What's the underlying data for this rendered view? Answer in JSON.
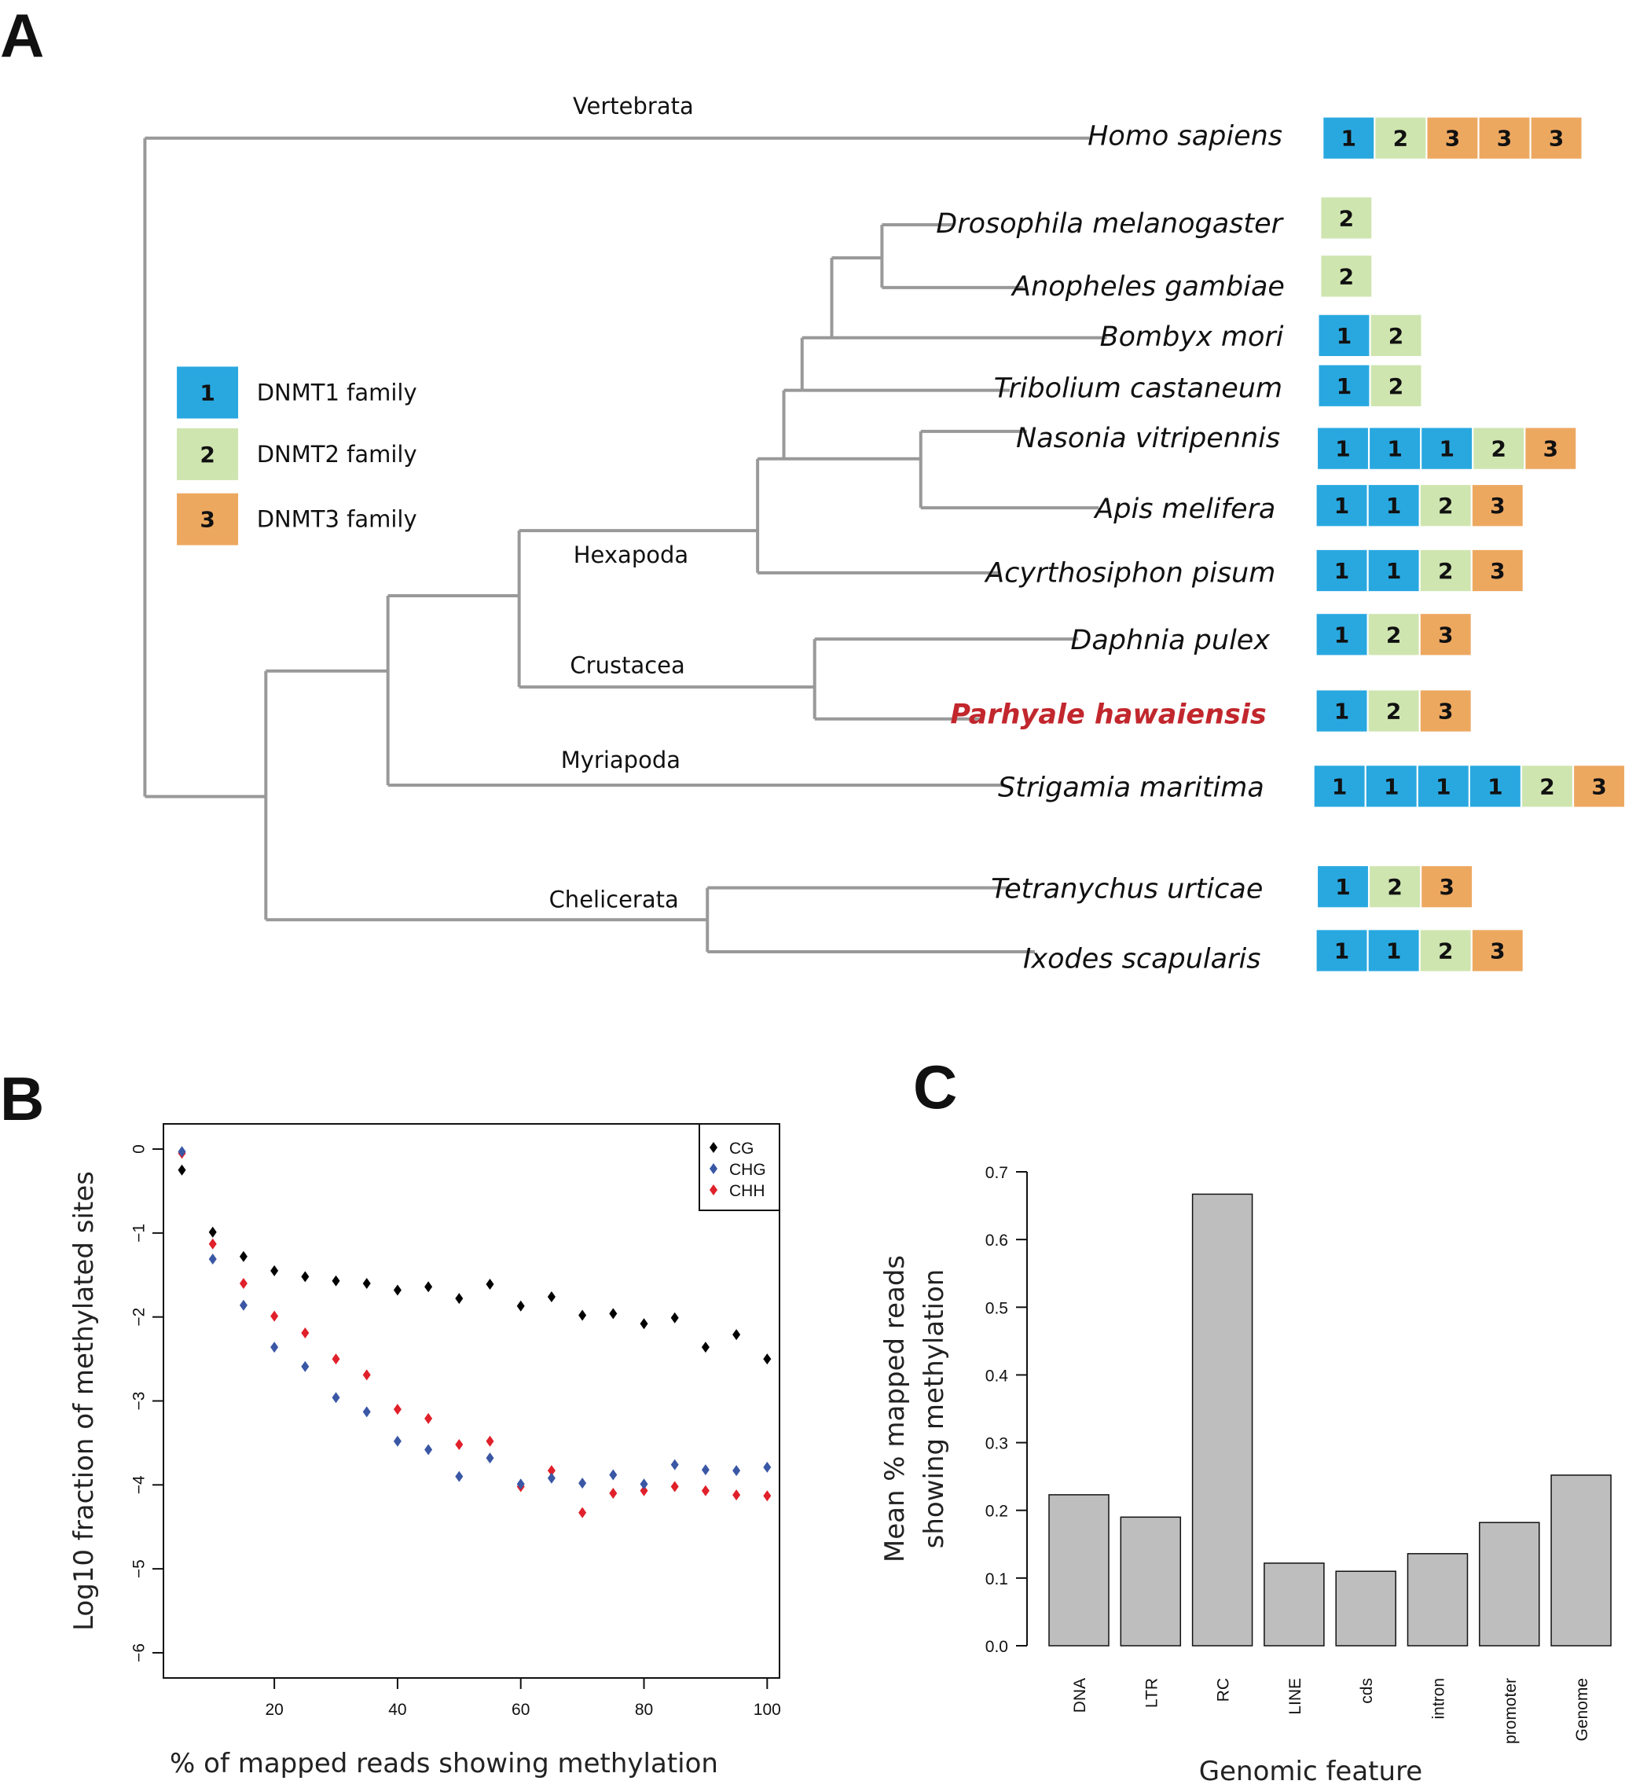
{
  "panels": {
    "a": "A",
    "b": "B",
    "c": "C"
  },
  "colors": {
    "dnmt1": "#29a8e0",
    "dnmt2": "#cfe5b0",
    "dnmt3": "#eda860",
    "branch": "#999999",
    "highlight": "#c1272d",
    "cg": "#000000",
    "chg": "#3a57a5",
    "chh": "#e0202a",
    "bar": "#bebebe"
  },
  "legend": [
    {
      "num": "1",
      "label": "DNMT1 family",
      "family": "dnmt1"
    },
    {
      "num": "2",
      "label": "DNMT2 family",
      "family": "dnmt2"
    },
    {
      "num": "3",
      "label": "DNMT3 family",
      "family": "dnmt3"
    }
  ],
  "clades": [
    "Vertebrata",
    "Hexapoda",
    "Crustacea",
    "Myriapoda",
    "Chelicerata"
  ],
  "species": [
    {
      "name": "Homo sapiens",
      "dnmts": [
        "1",
        "2",
        "3",
        "3",
        "3"
      ],
      "highlight": false
    },
    {
      "name": "Drosophila melanogaster",
      "dnmts": [
        "2"
      ],
      "highlight": false
    },
    {
      "name": "Anopheles gambiae",
      "dnmts": [
        "2"
      ],
      "highlight": false
    },
    {
      "name": "Bombyx mori",
      "dnmts": [
        "1",
        "2"
      ],
      "highlight": false
    },
    {
      "name": "Tribolium castaneum",
      "dnmts": [
        "1",
        "2"
      ],
      "highlight": false
    },
    {
      "name": "Nasonia vitripennis",
      "dnmts": [
        "1",
        "1",
        "1",
        "2",
        "3"
      ],
      "highlight": false
    },
    {
      "name": "Apis melifera",
      "dnmts": [
        "1",
        "1",
        "2",
        "3"
      ],
      "highlight": false
    },
    {
      "name": "Acyrthosiphon pisum",
      "dnmts": [
        "1",
        "1",
        "2",
        "3"
      ],
      "highlight": false
    },
    {
      "name": "Daphnia pulex",
      "dnmts": [
        "1",
        "2",
        "3"
      ],
      "highlight": false
    },
    {
      "name": "Parhyale hawaiensis",
      "dnmts": [
        "1",
        "2",
        "3"
      ],
      "highlight": true
    },
    {
      "name": "Strigamia maritima",
      "dnmts": [
        "1",
        "1",
        "1",
        "1",
        "2",
        "3"
      ],
      "highlight": false
    },
    {
      "name": "Tetranychus urticae",
      "dnmts": [
        "1",
        "2",
        "3"
      ],
      "highlight": false
    },
    {
      "name": "Ixodes scapularis",
      "dnmts": [
        "1",
        "1",
        "2",
        "3"
      ],
      "highlight": false
    }
  ],
  "chart_data": [
    {
      "type": "scatter",
      "title": "",
      "xlabel": "% of mapped reads showing methylation",
      "ylabel": "Log10 fraction of methylated sites",
      "xlim": [
        2,
        102
      ],
      "ylim": [
        -6.3,
        0.3
      ],
      "xticks": [
        20,
        40,
        60,
        80,
        100
      ],
      "yticks": [
        0,
        -1,
        -2,
        -3,
        -4,
        -5,
        -6
      ],
      "legend_position": "top-right",
      "x": [
        5,
        10,
        15,
        20,
        25,
        30,
        35,
        40,
        45,
        50,
        55,
        60,
        65,
        70,
        75,
        80,
        85,
        90,
        95,
        100
      ],
      "series": [
        {
          "name": "CG",
          "color": "#000000",
          "values": [
            -0.25,
            -0.99,
            -1.28,
            -1.45,
            -1.52,
            -1.57,
            -1.6,
            -1.68,
            -1.64,
            -1.78,
            -1.61,
            -1.87,
            -1.76,
            -1.98,
            -1.96,
            -2.08,
            -2.01,
            -2.36,
            -2.21,
            -2.5
          ]
        },
        {
          "name": "CHG",
          "color": "#3a57a5",
          "values": [
            -0.03,
            -1.31,
            -1.86,
            -2.36,
            -2.59,
            -2.96,
            -3.13,
            -3.48,
            -3.58,
            -3.9,
            -3.68,
            -3.99,
            -3.92,
            -3.98,
            -3.88,
            -3.99,
            -3.76,
            -3.82,
            -3.83,
            -3.79
          ]
        },
        {
          "name": "CHH",
          "color": "#e0202a",
          "values": [
            -0.05,
            -1.13,
            -1.6,
            -1.99,
            -2.19,
            -2.5,
            -2.69,
            -3.1,
            -3.21,
            -3.52,
            -3.48,
            -4.02,
            -3.83,
            -4.33,
            -4.1,
            -4.07,
            -4.02,
            -4.07,
            -4.12,
            -4.13
          ]
        }
      ]
    },
    {
      "type": "bar",
      "title": "",
      "xlabel": "Genomic feature",
      "ylabel": "Mean % mapped reads showing methylation",
      "ylim": [
        0,
        0.7
      ],
      "yticks": [
        "0.0",
        "0.1",
        "0.2",
        "0.3",
        "0.4",
        "0.5",
        "0.6",
        "0.7"
      ],
      "categories": [
        "DNA",
        "LTR",
        "RC",
        "LINE",
        "cds",
        "intron",
        "promoter",
        "Genome"
      ],
      "values": [
        0.223,
        0.19,
        0.667,
        0.122,
        0.11,
        0.136,
        0.182,
        0.252
      ]
    }
  ]
}
